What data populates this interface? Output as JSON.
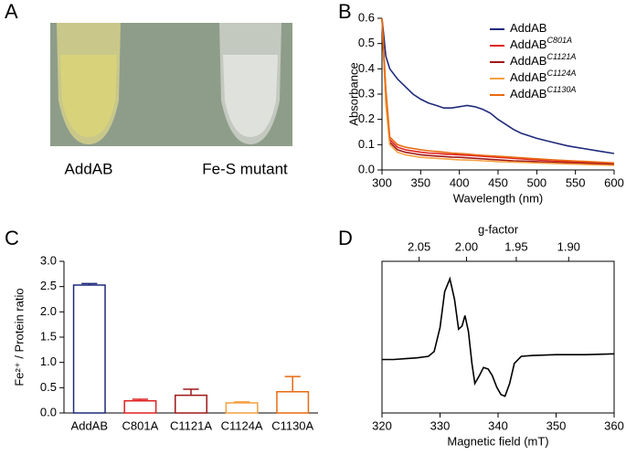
{
  "chart_data": [
    {
      "type": "photo",
      "panel": "A",
      "labels": [
        "AddAB",
        "Fe-S mutant"
      ]
    },
    {
      "type": "line",
      "panel": "B",
      "xlabel": "Wavelength (nm)",
      "ylabel": "Absorbance",
      "x": [
        300,
        305,
        310,
        320,
        330,
        340,
        350,
        360,
        370,
        380,
        390,
        400,
        410,
        420,
        430,
        440,
        450,
        460,
        470,
        480,
        490,
        500,
        520,
        540,
        560,
        580,
        600
      ],
      "series": [
        {
          "name": "AddAB",
          "color": "#1f2a7a",
          "values": [
            0.6,
            0.45,
            0.4,
            0.36,
            0.33,
            0.3,
            0.28,
            0.265,
            0.255,
            0.245,
            0.245,
            0.25,
            0.255,
            0.25,
            0.24,
            0.225,
            0.2,
            0.18,
            0.16,
            0.145,
            0.135,
            0.125,
            0.11,
            0.095,
            0.085,
            0.075,
            0.065
          ]
        },
        {
          "name": "AddAB",
          "name_superscript": "C801A",
          "color": "#e02020",
          "values": [
            0.6,
            0.3,
            0.12,
            0.09,
            0.08,
            0.075,
            0.07,
            0.067,
            0.065,
            0.063,
            0.061,
            0.06,
            0.058,
            0.056,
            0.054,
            0.052,
            0.05,
            0.048,
            0.046,
            0.044,
            0.042,
            0.04,
            0.036,
            0.033,
            0.03,
            0.028,
            0.026
          ]
        },
        {
          "name": "AddAB",
          "name_superscript": "C1121A",
          "color": "#a01818",
          "values": [
            0.6,
            0.28,
            0.11,
            0.08,
            0.07,
            0.065,
            0.06,
            0.057,
            0.055,
            0.053,
            0.051,
            0.05,
            0.048,
            0.046,
            0.044,
            0.042,
            0.04,
            0.038,
            0.036,
            0.035,
            0.034,
            0.033,
            0.03,
            0.028,
            0.026,
            0.024,
            0.022
          ]
        },
        {
          "name": "AddAB",
          "name_superscript": "C1124A",
          "color": "#f5a040",
          "values": [
            0.6,
            0.26,
            0.1,
            0.07,
            0.06,
            0.055,
            0.05,
            0.048,
            0.046,
            0.044,
            0.042,
            0.04,
            0.039,
            0.038,
            0.036,
            0.035,
            0.033,
            0.032,
            0.031,
            0.03,
            0.029,
            0.028,
            0.026,
            0.024,
            0.022,
            0.02,
            0.018
          ]
        },
        {
          "name": "AddAB",
          "name_superscript": "C1130A",
          "color": "#e86a10",
          "values": [
            0.6,
            0.32,
            0.13,
            0.1,
            0.09,
            0.085,
            0.08,
            0.076,
            0.073,
            0.07,
            0.067,
            0.065,
            0.063,
            0.06,
            0.058,
            0.056,
            0.054,
            0.052,
            0.05,
            0.048,
            0.046,
            0.044,
            0.04,
            0.037,
            0.034,
            0.031,
            0.028
          ]
        }
      ],
      "xlim": [
        300,
        600
      ],
      "xticks": [
        300,
        350,
        400,
        450,
        500,
        550,
        600
      ],
      "ylim": [
        0,
        0.6
      ],
      "yticks": [
        {
          "value": 0,
          "label": "0.0"
        },
        0.1,
        0.2,
        0.3,
        0.4,
        0.5,
        0.6
      ],
      "frame": "axes"
    },
    {
      "type": "bar",
      "panel": "C",
      "ylabel": "Fe²⁺ / Protein ratio",
      "categories": [
        "AddAB",
        "C801A",
        "C1121A",
        "C1124A",
        "C1130A"
      ],
      "values": [
        2.53,
        0.24,
        0.35,
        0.2,
        0.42
      ],
      "errors": [
        0.03,
        0.03,
        0.12,
        0.02,
        0.3
      ],
      "colors": [
        "#1f2a7a",
        "#e02020",
        "#a01818",
        "#f5a040",
        "#e86a10"
      ],
      "ylim": [
        0,
        3
      ],
      "yticks": [
        {
          "value": 0,
          "label": "0.0"
        },
        0.5,
        {
          "value": 1,
          "label": "1.0"
        },
        1.5,
        {
          "value": 2,
          "label": "2.0"
        },
        2.5,
        {
          "value": 3,
          "label": "3.0"
        }
      ],
      "frame": "axes"
    },
    {
      "type": "line",
      "panel": "D",
      "xlabel": "Magnetic field (mT)",
      "x2label": "g-factor",
      "x": [
        320,
        322,
        324,
        326,
        328,
        329,
        330,
        330.8,
        331.7,
        332.5,
        333.2,
        333.8,
        334.3,
        334.9,
        335.5,
        336,
        336.8,
        337.5,
        338.3,
        339,
        339.8,
        340.5,
        341.2,
        342,
        342.8,
        344,
        346,
        350,
        355,
        360
      ],
      "series": [
        {
          "name": null,
          "color": "#000000",
          "values": [
            0,
            0,
            0.01,
            0.02,
            0.04,
            0.1,
            0.4,
            0.85,
            1.01,
            0.75,
            0.38,
            0.42,
            0.55,
            0.35,
            -0.05,
            -0.3,
            -0.2,
            -0.1,
            -0.12,
            -0.2,
            -0.35,
            -0.44,
            -0.46,
            -0.3,
            -0.05,
            0.04,
            0.05,
            0.06,
            0.06,
            0.07
          ]
        }
      ],
      "xlim": [
        320,
        360
      ],
      "xticks": [
        320,
        330,
        340,
        350,
        360
      ],
      "x2lim": [
        2.091,
        1.859
      ],
      "x2scale": "reciprocal",
      "x2ticks": [
        {
          "value": 2.05,
          "label": "2.05"
        },
        {
          "value": 2,
          "label": "2.00"
        },
        1.95,
        {
          "value": 1.9,
          "label": "1.90"
        }
      ],
      "ylim": [
        -0.67,
        1.23
      ],
      "frame": "box"
    }
  ]
}
